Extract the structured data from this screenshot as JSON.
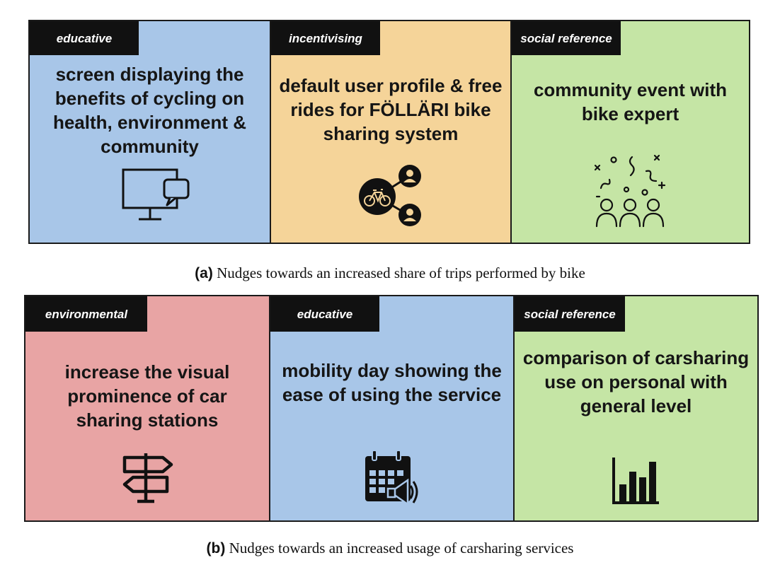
{
  "colors": {
    "blue": "#a8c6e8",
    "orange": "#f5d499",
    "green": "#c5e5a5",
    "red": "#e8a4a4",
    "tag_bg": "#111111",
    "border": "#1a1a1a"
  },
  "panel_a": {
    "cards": [
      {
        "tag": "educative",
        "text": "screen displaying the benefits of cycling on health, environment & community",
        "icon": "monitor-chat-icon",
        "color": "blue"
      },
      {
        "tag": "incentivising",
        "text": "default user profile & free rides for FÖLLÄRI bike sharing system",
        "icon": "bike-share-network-icon",
        "color": "orange"
      },
      {
        "tag": "social reference",
        "text": "community event with bike expert",
        "icon": "community-event-icon",
        "color": "green"
      }
    ],
    "caption_label": "(a)",
    "caption_text": "Nudges towards an increased share of trips performed by bike"
  },
  "panel_b": {
    "cards": [
      {
        "tag": "environmental",
        "text": "increase the visual prominence of car sharing stations",
        "icon": "signpost-icon",
        "color": "red"
      },
      {
        "tag": "educative",
        "text": "mobility day showing the ease of using the service",
        "icon": "calendar-megaphone-icon",
        "color": "blue"
      },
      {
        "tag": "social reference",
        "text": "comparison of carsharing use on personal with general level",
        "icon": "bar-chart-icon",
        "color": "green"
      }
    ],
    "caption_label": "(b)",
    "caption_text": "Nudges towards an increased usage of carsharing services"
  }
}
